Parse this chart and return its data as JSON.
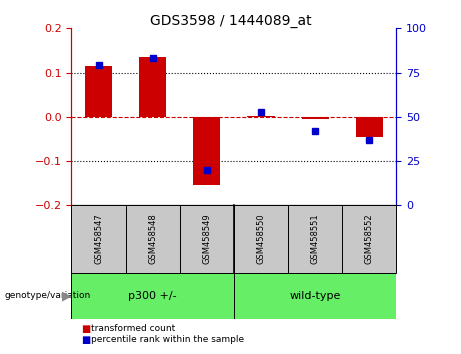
{
  "title": "GDS3598 / 1444089_at",
  "samples": [
    "GSM458547",
    "GSM458548",
    "GSM458549",
    "GSM458550",
    "GSM458551",
    "GSM458552"
  ],
  "red_bars": [
    0.115,
    0.135,
    -0.155,
    0.002,
    -0.005,
    -0.045
  ],
  "blue_dot_percentile": [
    79,
    83,
    20,
    53,
    42,
    37
  ],
  "ylim": [
    -0.2,
    0.2
  ],
  "yticks_left": [
    -0.2,
    -0.1,
    0.0,
    0.1,
    0.2
  ],
  "yticks_right": [
    0,
    25,
    50,
    75,
    100
  ],
  "red_color": "#CC0000",
  "blue_color": "#0000CC",
  "bar_width": 0.5,
  "group1_label": "p300 +/-",
  "group2_label": "wild-type",
  "group_color": "#66EE66",
  "gray_color": "#C8C8C8",
  "genotype_label": "genotype/variation",
  "legend_red": "transformed count",
  "legend_blue": "percentile rank within the sample"
}
